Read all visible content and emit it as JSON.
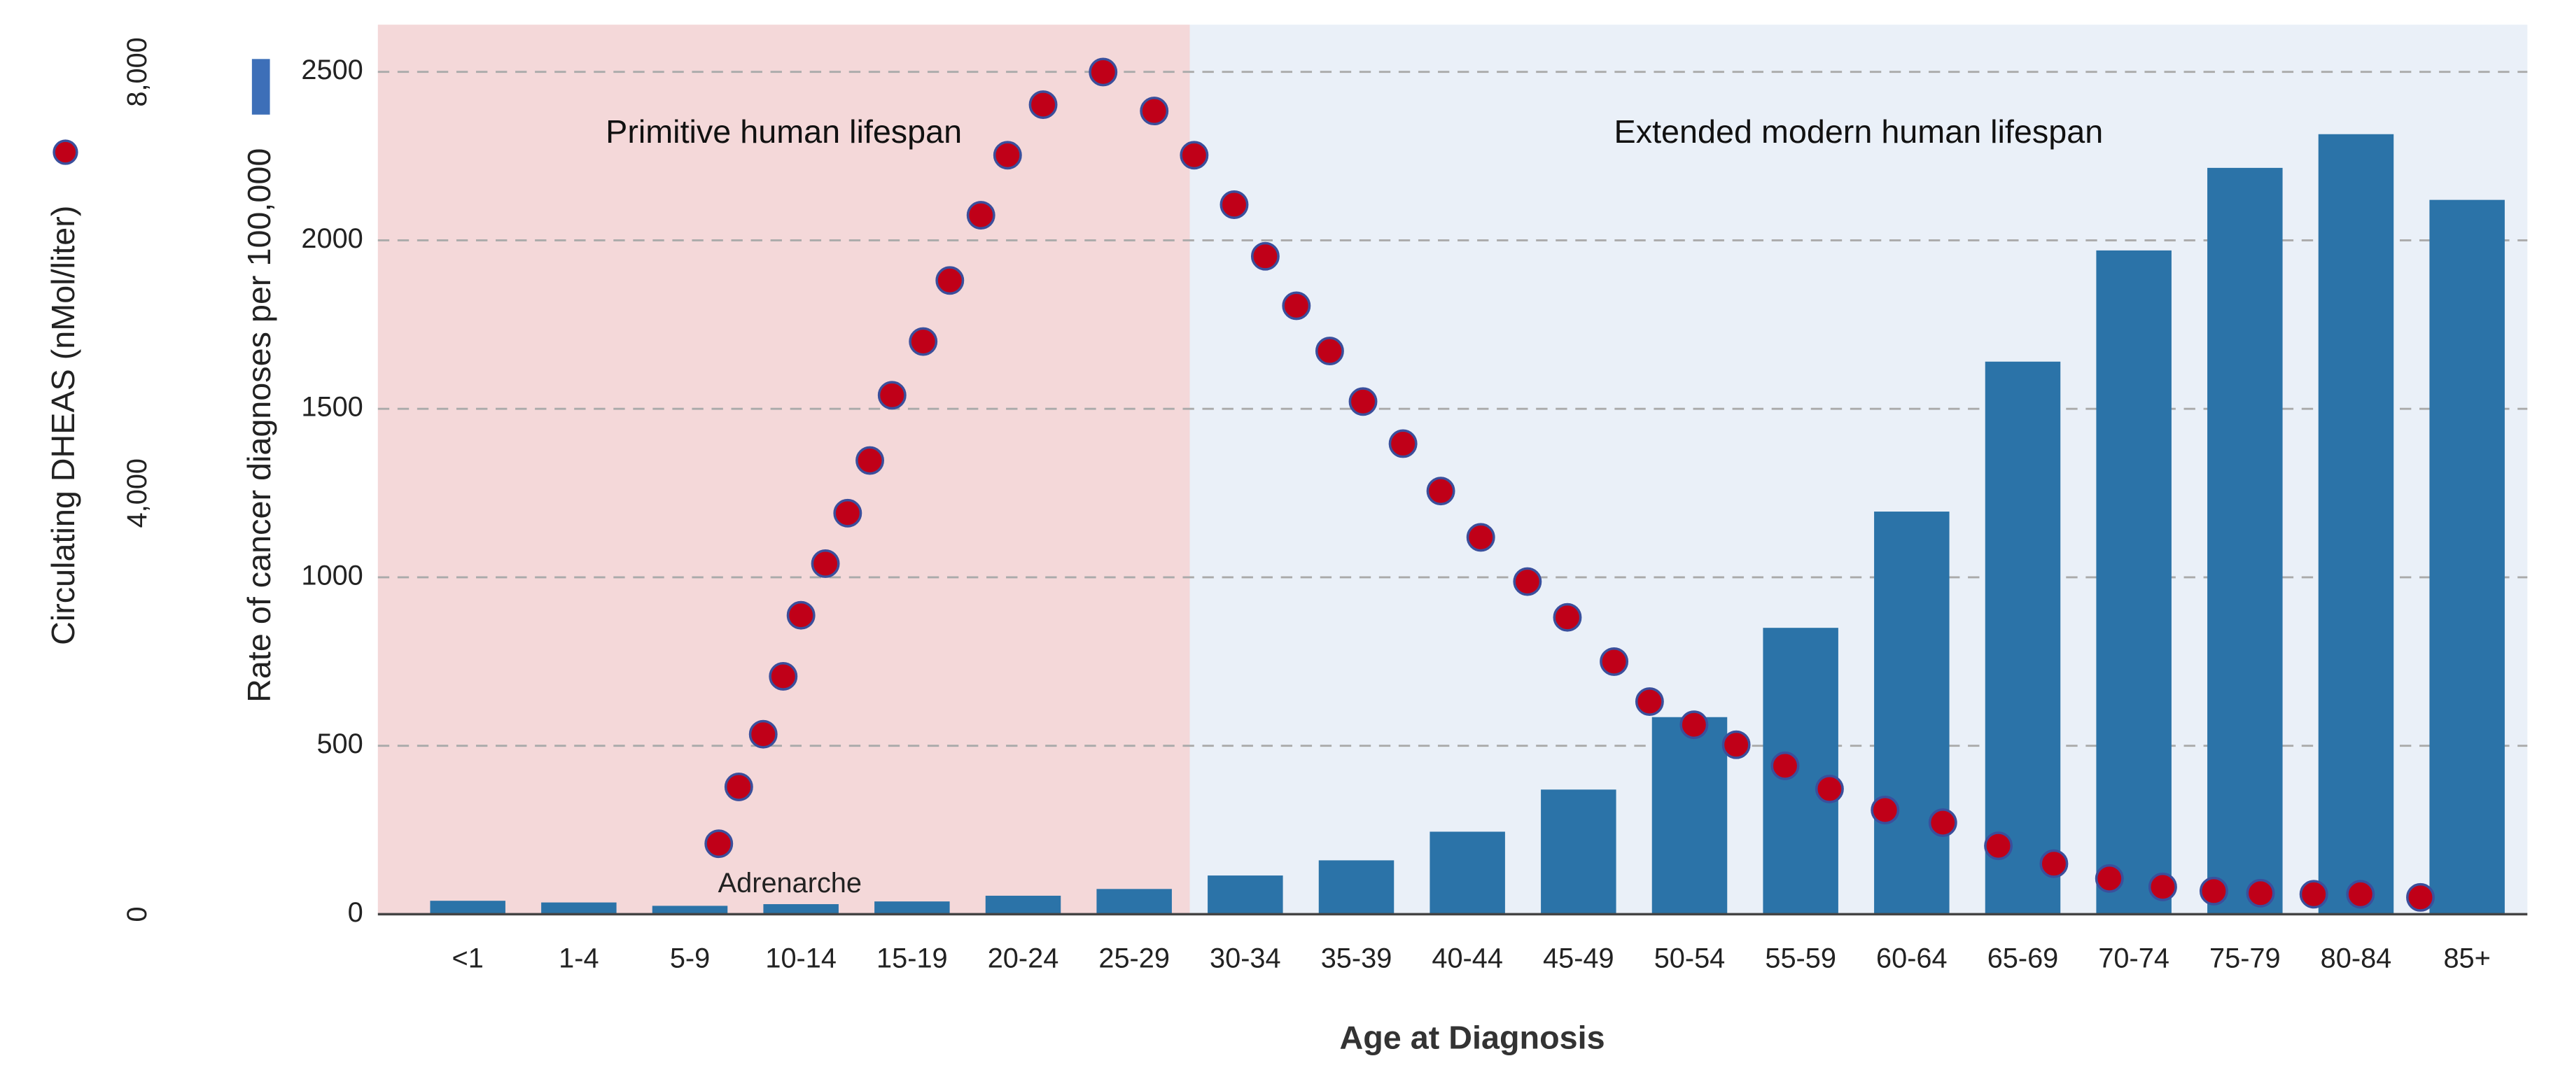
{
  "chart_data": {
    "type": "bar",
    "x_label": "Age at Diagnosis",
    "y_label": "Rate of cancer diagnoses per 100,000",
    "y2_label": "Circulating DHEAS (nMol/liter)",
    "categories": [
      "<1",
      "1-4",
      "5-9",
      "10-14",
      "15-19",
      "20-24",
      "25-29",
      "30-34",
      "35-39",
      "40-44",
      "45-49",
      "50-54",
      "55-59",
      "60-64",
      "65-69",
      "70-74",
      "75-79",
      "80-84",
      "85+"
    ],
    "series": [
      {
        "type": "bar",
        "color": "#2b73a8",
        "values": [
          40,
          35,
          25,
          30,
          38,
          55,
          75,
          115,
          160,
          245,
          370,
          585,
          850,
          1195,
          1640,
          1970,
          2215,
          2315,
          2120
        ]
      },
      {
        "type": "scatter",
        "axis": "y2",
        "color": "#c00018",
        "edge_color": "#3a4f9c",
        "x": [
          8.8,
          9.7,
          10.8,
          11.7,
          12.5,
          13.6,
          14.6,
          15.6,
          16.6,
          18.0,
          19.2,
          20.6,
          21.8,
          23.4,
          26.1,
          28.4,
          30.2,
          32.0,
          33.4,
          34.8,
          36.3,
          37.8,
          39.6,
          41.3,
          43.1,
          45.2,
          47.0,
          49.1,
          50.7,
          52.7,
          54.6,
          56.8,
          58.8,
          61.3,
          63.9,
          66.4,
          68.9,
          71.4,
          73.8,
          76.1,
          78.2,
          80.6,
          82.7,
          85.4
        ],
        "values": [
          670,
          1210,
          1710,
          2260,
          2840,
          3330,
          3810,
          4310,
          4930,
          5440,
          6020,
          6640,
          7210,
          7690,
          8000,
          7630,
          7210,
          6740,
          6250,
          5780,
          5350,
          4870,
          4470,
          4020,
          3580,
          3160,
          2820,
          2400,
          2020,
          1800,
          1610,
          1410,
          1190,
          990,
          870,
          650,
          480,
          340,
          260,
          220,
          200,
          190,
          190,
          160
        ]
      }
    ],
    "ylim": [
      0,
      2640
    ],
    "yticks": [
      0,
      500,
      1000,
      1500,
      2000,
      2500
    ],
    "y2lim": [
      0,
      8450
    ],
    "y2ticks": [
      0,
      {
        "value": 4000,
        "label": "4,000"
      },
      {
        "value": 8000,
        "label": "8,000"
      }
    ],
    "grid": true,
    "regions": [
      {
        "label": "Primitive human lifespan",
        "color": "#f4d8d9",
        "to_age": 30
      },
      {
        "label": "Extended modern human lifespan",
        "color": "#eaf0f8"
      }
    ],
    "annotations": [
      {
        "text": "Adrenarche",
        "age": 12
      }
    ]
  }
}
